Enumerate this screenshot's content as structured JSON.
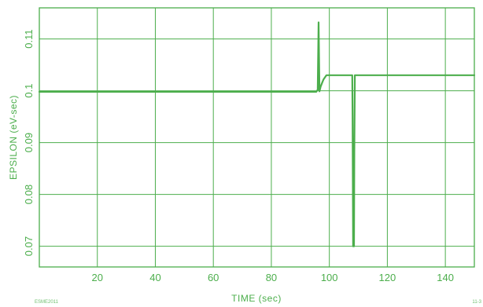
{
  "chart_data": {
    "type": "line",
    "title": "",
    "xlabel": "TIME (sec)",
    "ylabel": "EPSILON (eV-sec)",
    "xlim": [
      0,
      150
    ],
    "ylim": [
      0.066,
      0.116
    ],
    "x_ticks": [
      20,
      40,
      60,
      80,
      100,
      120,
      140
    ],
    "x_tick_labels": [
      "20",
      "40",
      "60",
      "80",
      "100",
      "120",
      "140"
    ],
    "y_ticks": [
      0.07,
      0.08,
      0.09,
      0.1,
      0.11
    ],
    "y_tick_labels": [
      "0.07",
      "0.08",
      "0.09",
      "0.1",
      "0.11"
    ],
    "grid": true,
    "legend": "none",
    "color": "#4cae4c",
    "series": [
      {
        "x": [
          0,
          10,
          20,
          30,
          40,
          50,
          60,
          70,
          80,
          90,
          95.5,
          96,
          96.3,
          96.6,
          97,
          97.5,
          98,
          99,
          100,
          107.9,
          108,
          108.2,
          108.5,
          108.6,
          108.8,
          109,
          110,
          120,
          130,
          140,
          150
        ],
        "y": [
          0.0998,
          0.0998,
          0.0998,
          0.0998,
          0.0998,
          0.0998,
          0.0998,
          0.0998,
          0.0998,
          0.0998,
          0.0998,
          0.1002,
          0.1132,
          0.0999,
          0.1008,
          0.1015,
          0.1022,
          0.103,
          0.103,
          0.103,
          0.095,
          0.07,
          0.07,
          0.088,
          0.103,
          0.103,
          0.103,
          0.103,
          0.103,
          0.103,
          0.103
        ]
      }
    ]
  },
  "footer": {
    "left_code": "ESME2011",
    "right_code": "11-3"
  }
}
